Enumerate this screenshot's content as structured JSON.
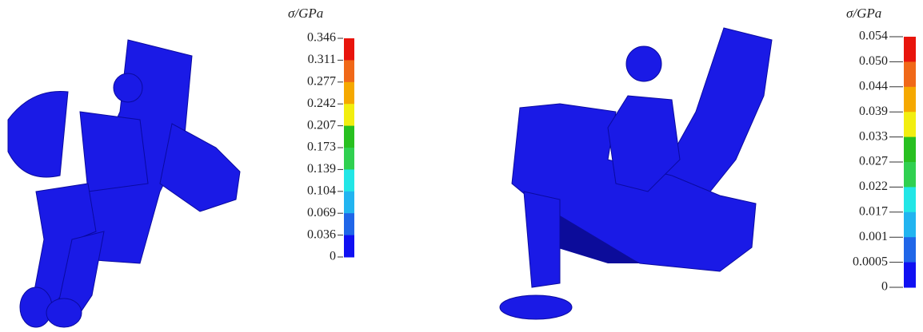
{
  "panels": [
    {
      "unit_label": "σ/GPa",
      "colorbar_labels": [
        "0.346",
        "0.311",
        "0.277",
        "0.242",
        "0.207",
        "0.173",
        "0.139",
        "0.104",
        "0.069",
        "0.036",
        "0"
      ]
    },
    {
      "unit_label": "σ/GPa",
      "colorbar_labels": [
        "0.054",
        "0.050",
        "0.044",
        "0.039",
        "0.033",
        "0.027",
        "0.022",
        "0.017",
        "0.001",
        "0.0005",
        "0"
      ]
    }
  ]
}
